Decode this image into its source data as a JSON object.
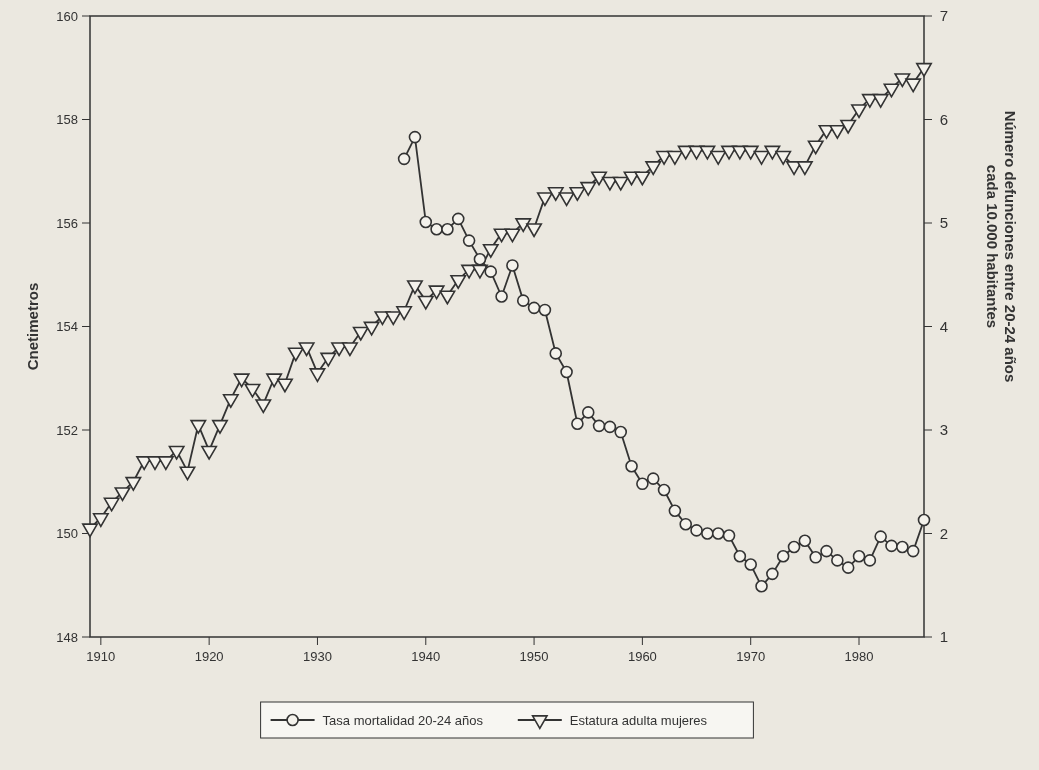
{
  "chart_data": {
    "type": "line",
    "ylabel": "Cnetimetros",
    "y2label": "Número defunciones entre 20-24 años cada 10.000 habitantes",
    "x": [
      1909,
      1910,
      1911,
      1912,
      1913,
      1914,
      1915,
      1916,
      1917,
      1918,
      1919,
      1920,
      1921,
      1922,
      1923,
      1924,
      1925,
      1926,
      1927,
      1928,
      1929,
      1930,
      1931,
      1932,
      1933,
      1934,
      1935,
      1936,
      1937,
      1938,
      1939,
      1940,
      1941,
      1942,
      1943,
      1944,
      1945,
      1946,
      1947,
      1948,
      1949,
      1950,
      1951,
      1952,
      1953,
      1954,
      1955,
      1956,
      1957,
      1958,
      1959,
      1960,
      1961,
      1962,
      1963,
      1964,
      1965,
      1966,
      1967,
      1968,
      1969,
      1970,
      1971,
      1972,
      1973,
      1974,
      1975,
      1976,
      1977,
      1978,
      1979,
      1980,
      1981,
      1982,
      1983,
      1984,
      1985,
      1986
    ],
    "xlim": [
      1909,
      1986
    ],
    "xticks": [
      1910,
      1920,
      1930,
      1940,
      1950,
      1960,
      1970,
      1980
    ],
    "ylim": [
      148,
      160
    ],
    "yticks": [
      148,
      150,
      152,
      154,
      156,
      158,
      160
    ],
    "y2lim": [
      1,
      7
    ],
    "y2ticks": [
      1,
      2,
      3,
      4,
      5,
      6,
      7
    ],
    "grid": false,
    "legend": "bottom",
    "line_style": "solid",
    "series": [
      {
        "name": "Tasa mortalidad 20-24 años",
        "color": "#333333",
        "axis": "y2",
        "marker": "circle",
        "values": [
          null,
          null,
          null,
          null,
          null,
          null,
          null,
          null,
          null,
          null,
          null,
          null,
          null,
          null,
          null,
          null,
          null,
          null,
          null,
          null,
          null,
          null,
          null,
          null,
          null,
          null,
          null,
          null,
          null,
          5.62,
          5.83,
          5.01,
          4.94,
          4.94,
          5.04,
          4.83,
          4.65,
          4.53,
          4.29,
          4.59,
          4.25,
          4.18,
          4.16,
          3.74,
          3.56,
          3.06,
          3.17,
          3.04,
          3.03,
          2.98,
          2.65,
          2.48,
          2.53,
          2.42,
          2.22,
          2.09,
          2.03,
          2.0,
          2.0,
          1.98,
          1.78,
          1.7,
          1.49,
          1.61,
          1.78,
          1.87,
          1.93,
          1.77,
          1.83,
          1.74,
          1.67,
          1.78,
          1.74,
          1.97,
          1.88,
          1.87,
          1.83,
          2.13
        ]
      },
      {
        "name": "Estatura adulta mujeres",
        "color": "#333333",
        "marker": "triangle",
        "values": [
          150.1,
          150.3,
          150.6,
          150.8,
          151.0,
          151.4,
          151.4,
          151.4,
          151.6,
          151.2,
          152.1,
          151.6,
          152.1,
          152.6,
          153.0,
          152.8,
          152.5,
          153.0,
          152.9,
          153.5,
          153.6,
          153.1,
          153.4,
          153.6,
          153.6,
          153.9,
          154.0,
          154.2,
          154.2,
          154.3,
          154.8,
          154.5,
          154.7,
          154.6,
          154.9,
          155.1,
          155.1,
          155.5,
          155.8,
          155.8,
          156.0,
          155.9,
          156.5,
          156.6,
          156.5,
          156.6,
          156.7,
          156.9,
          156.8,
          156.8,
          156.9,
          156.9,
          157.1,
          157.3,
          157.3,
          157.4,
          157.4,
          157.4,
          157.3,
          157.4,
          157.4,
          157.4,
          157.3,
          157.4,
          157.3,
          157.1,
          157.1,
          157.5,
          157.8,
          157.8,
          157.9,
          158.2,
          158.4,
          158.4,
          158.6,
          158.8,
          158.7,
          159.0
        ]
      }
    ]
  }
}
